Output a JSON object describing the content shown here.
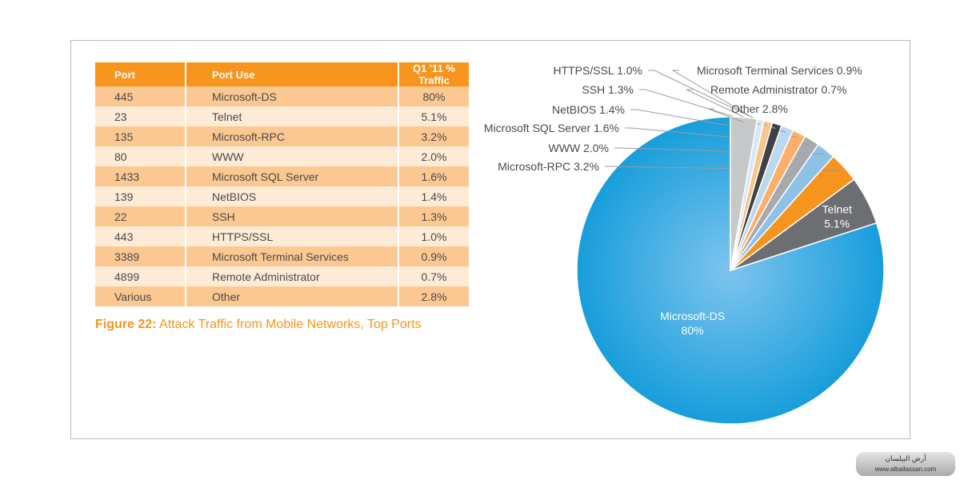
{
  "table": {
    "headers": [
      "Port",
      "Port Use",
      "Q1 '11 % Traffic"
    ],
    "rows": [
      [
        "445",
        "Microsoft-DS",
        "80%"
      ],
      [
        "23",
        "Telnet",
        "5.1%"
      ],
      [
        "135",
        "Microsoft-RPC",
        "3.2%"
      ],
      [
        "80",
        "WWW",
        "2.0%"
      ],
      [
        "1433",
        "Microsoft SQL Server",
        "1.6%"
      ],
      [
        "139",
        "NetBIOS",
        "1.4%"
      ],
      [
        "22",
        "SSH",
        "1.3%"
      ],
      [
        "443",
        "HTTPS/SSL",
        "1.0%"
      ],
      [
        "3389",
        "Microsoft Terminal Services",
        "0.9%"
      ],
      [
        "4899",
        "Remote Administrator",
        "0.7%"
      ],
      [
        "Various",
        "Other",
        "2.8%"
      ]
    ]
  },
  "caption": {
    "label": "Figure 22:",
    "text": "Attack Traffic from Mobile Networks, Top Ports"
  },
  "chart_data": {
    "type": "pie",
    "title": "",
    "slices": [
      {
        "label": "Microsoft-DS",
        "value": 80,
        "display": "80%",
        "color": "#0d9ad9"
      },
      {
        "label": "Telnet",
        "value": 5.1,
        "display": "5.1%",
        "color": "#6d6e71"
      },
      {
        "label": "Microsoft-RPC",
        "value": 3.2,
        "display": "3.2%",
        "color": "#f7941d"
      },
      {
        "label": "WWW",
        "value": 2.0,
        "display": "2.0%",
        "color": "#8dc2e6"
      },
      {
        "label": "Microsoft SQL Server",
        "value": 1.6,
        "display": "1.6%",
        "color": "#a7a9ac"
      },
      {
        "label": "NetBIOS",
        "value": 1.4,
        "display": "1.4%",
        "color": "#fbb06a"
      },
      {
        "label": "SSH",
        "value": 1.3,
        "display": "1.3%",
        "color": "#bcd8ee"
      },
      {
        "label": "HTTPS/SSL",
        "value": 1.0,
        "display": "1.0%",
        "color": "#414042"
      },
      {
        "label": "Microsoft Terminal Services",
        "value": 0.9,
        "display": "0.9%",
        "color": "#f9c58f"
      },
      {
        "label": "Remote Administrator",
        "value": 0.7,
        "display": "0.7%",
        "color": "#d6e8f5"
      },
      {
        "label": "Other",
        "value": 2.8,
        "display": "2.8%",
        "color": "#c7c8ca"
      }
    ]
  },
  "watermark": {
    "line1": "أرض البيلسان",
    "line2": "www.albailassan.com"
  }
}
